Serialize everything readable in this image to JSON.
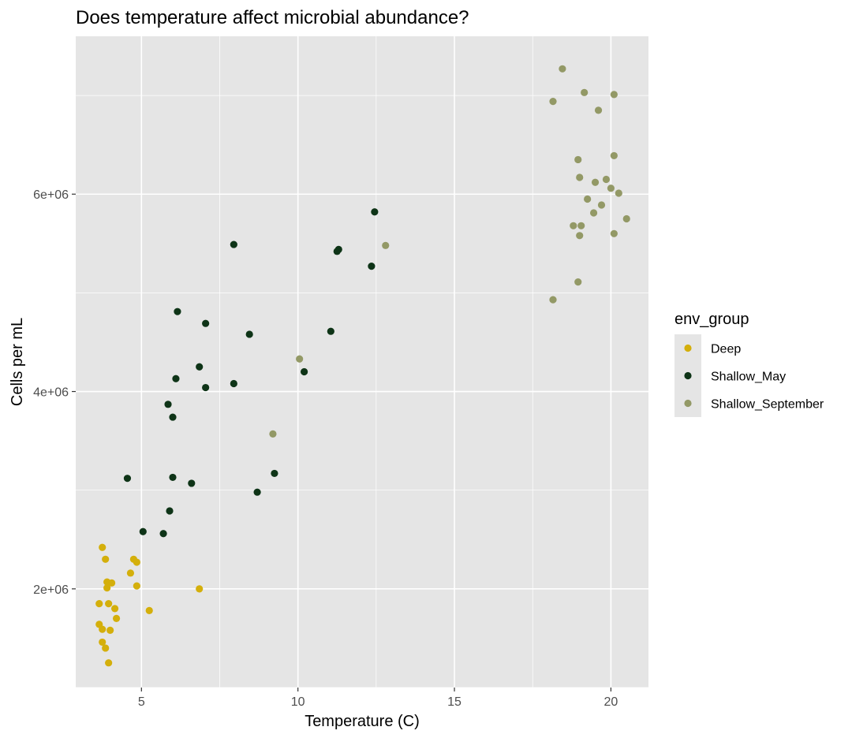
{
  "colors": {
    "panel_bg": "#e5e5e5",
    "grid_major": "#ffffff",
    "Deep": "#d4af0b",
    "Shallow_May": "#0e3417",
    "Shallow_September": "#939966"
  },
  "chart_data": {
    "type": "scatter",
    "title": "Does temperature affect microbial abundance?",
    "xlabel": "Temperature (C)",
    "ylabel": "Cells per mL",
    "xlim": [
      2.9,
      21.2
    ],
    "ylim": [
      1000000,
      7600000
    ],
    "x_ticks": [
      5,
      10,
      15,
      20
    ],
    "x_tick_labels": [
      "5",
      "10",
      "15",
      "20"
    ],
    "y_ticks": [
      2000000,
      4000000,
      6000000
    ],
    "y_tick_labels": [
      "2e+06",
      "4e+06",
      "6e+06"
    ],
    "grid": true,
    "legend": {
      "title": "env_group",
      "position": "right",
      "entries": [
        "Deep",
        "Shallow_May",
        "Shallow_September"
      ]
    },
    "series": [
      {
        "name": "Deep",
        "points": [
          [
            3.75,
            2420000
          ],
          [
            3.85,
            2300000
          ],
          [
            4.75,
            2300000
          ],
          [
            4.85,
            2270000
          ],
          [
            4.65,
            2160000
          ],
          [
            3.9,
            2070000
          ],
          [
            4.05,
            2060000
          ],
          [
            3.9,
            2010000
          ],
          [
            4.85,
            2030000
          ],
          [
            6.85,
            2000000
          ],
          [
            3.65,
            1850000
          ],
          [
            3.95,
            1850000
          ],
          [
            4.15,
            1800000
          ],
          [
            5.25,
            1780000
          ],
          [
            4.2,
            1700000
          ],
          [
            3.65,
            1640000
          ],
          [
            3.75,
            1590000
          ],
          [
            4.0,
            1580000
          ],
          [
            3.75,
            1460000
          ],
          [
            3.85,
            1400000
          ],
          [
            3.95,
            1250000
          ]
        ]
      },
      {
        "name": "Shallow_May",
        "points": [
          [
            12.45,
            5820000
          ],
          [
            7.95,
            5490000
          ],
          [
            11.3,
            5440000
          ],
          [
            11.25,
            5420000
          ],
          [
            12.35,
            5270000
          ],
          [
            6.15,
            4810000
          ],
          [
            7.05,
            4690000
          ],
          [
            11.05,
            4610000
          ],
          [
            8.45,
            4580000
          ],
          [
            6.85,
            4250000
          ],
          [
            10.2,
            4200000
          ],
          [
            6.1,
            4130000
          ],
          [
            7.95,
            4080000
          ],
          [
            7.05,
            4040000
          ],
          [
            5.85,
            3870000
          ],
          [
            6.0,
            3740000
          ],
          [
            4.55,
            3120000
          ],
          [
            6.0,
            3130000
          ],
          [
            9.25,
            3170000
          ],
          [
            6.6,
            3070000
          ],
          [
            8.7,
            2980000
          ],
          [
            5.9,
            2790000
          ],
          [
            5.05,
            2580000
          ],
          [
            5.7,
            2560000
          ]
        ]
      },
      {
        "name": "Shallow_September",
        "points": [
          [
            18.45,
            7270000
          ],
          [
            19.15,
            7030000
          ],
          [
            20.1,
            7010000
          ],
          [
            18.15,
            6940000
          ],
          [
            19.6,
            6850000
          ],
          [
            20.1,
            6390000
          ],
          [
            18.95,
            6350000
          ],
          [
            19.0,
            6170000
          ],
          [
            19.85,
            6150000
          ],
          [
            19.5,
            6120000
          ],
          [
            20.0,
            6060000
          ],
          [
            20.25,
            6010000
          ],
          [
            19.25,
            5950000
          ],
          [
            19.7,
            5890000
          ],
          [
            19.45,
            5810000
          ],
          [
            20.5,
            5750000
          ],
          [
            18.8,
            5680000
          ],
          [
            19.05,
            5680000
          ],
          [
            19.0,
            5580000
          ],
          [
            20.1,
            5600000
          ],
          [
            12.8,
            5480000
          ],
          [
            18.95,
            5110000
          ],
          [
            18.15,
            4930000
          ],
          [
            10.05,
            4330000
          ],
          [
            9.2,
            3570000
          ]
        ]
      }
    ]
  }
}
